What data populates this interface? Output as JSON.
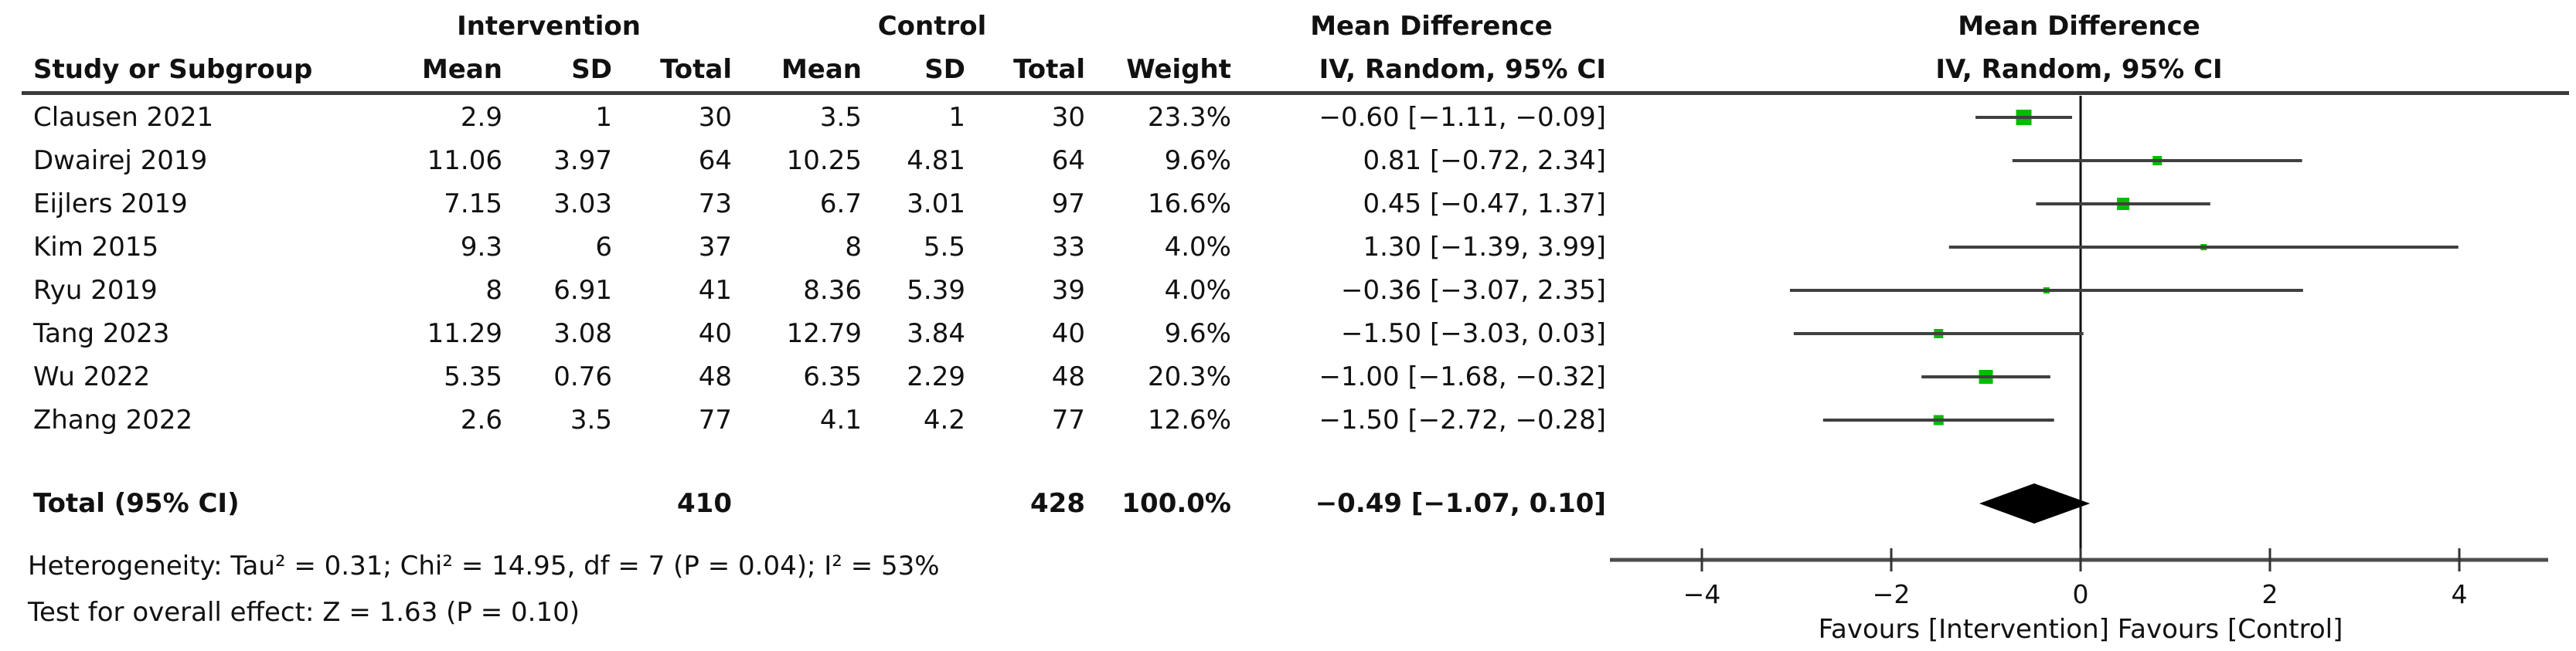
{
  "headers": {
    "study": "Study or Subgroup",
    "intervention": "Intervention",
    "control": "Control",
    "mean": "Mean",
    "sd": "SD",
    "total": "Total",
    "weight": "Weight",
    "md": "Mean Difference",
    "method": "IV, Random, 95% CI"
  },
  "stats": {
    "heterogeneity": "Heterogeneity: Tau² = 0.31; Chi² = 14.95, df = 7 (P = 0.04); I² = 53%",
    "overall_effect": "Test for overall effect: Z = 1.63 (P = 0.10)"
  },
  "axis": {
    "tick_labels": [
      "−4",
      "−2",
      "0",
      "2",
      "4"
    ],
    "tick_values": [
      -4,
      -2,
      0,
      2,
      4
    ],
    "favours": "Favours [Intervention] Favours [Control]"
  },
  "colors": {
    "marker_green": "#00bd00",
    "ci_line": "#404040",
    "diamond": "#000000",
    "axis": "#4d4d4d",
    "zero_line": "#111111"
  },
  "chart_data": {
    "type": "forest",
    "effect_measure": "Mean Difference",
    "model": "IV, Random, 95% CI",
    "x_ticks": [
      -4,
      -2,
      0,
      2,
      4
    ],
    "xlim": [
      -4.95,
      4.95
    ],
    "grid": false,
    "favours_label": "Favours [Intervention] Favours [Control]",
    "studies": [
      {
        "study": "Clausen 2021",
        "i_mean": "2.9",
        "i_sd": "1",
        "i_total": "30",
        "c_mean": "3.5",
        "c_sd": "1",
        "c_total": "30",
        "weight": "23.3%",
        "weight_pct": 23.3,
        "ci_label": "−0.60 [−1.11, −0.09]",
        "md": -0.6,
        "lo": -1.11,
        "hi": -0.09
      },
      {
        "study": "Dwairej 2019",
        "i_mean": "11.06",
        "i_sd": "3.97",
        "i_total": "64",
        "c_mean": "10.25",
        "c_sd": "4.81",
        "c_total": "64",
        "weight": "9.6%",
        "weight_pct": 9.6,
        "ci_label": "0.81 [−0.72, 2.34]",
        "md": 0.81,
        "lo": -0.72,
        "hi": 2.34
      },
      {
        "study": "Eijlers 2019",
        "i_mean": "7.15",
        "i_sd": "3.03",
        "i_total": "73",
        "c_mean": "6.7",
        "c_sd": "3.01",
        "c_total": "97",
        "weight": "16.6%",
        "weight_pct": 16.6,
        "ci_label": "0.45 [−0.47, 1.37]",
        "md": 0.45,
        "lo": -0.47,
        "hi": 1.37
      },
      {
        "study": "Kim 2015",
        "i_mean": "9.3",
        "i_sd": "6",
        "i_total": "37",
        "c_mean": "8",
        "c_sd": "5.5",
        "c_total": "33",
        "weight": "4.0%",
        "weight_pct": 4.0,
        "ci_label": "1.30 [−1.39, 3.99]",
        "md": 1.3,
        "lo": -1.39,
        "hi": 3.99
      },
      {
        "study": "Ryu 2019",
        "i_mean": "8",
        "i_sd": "6.91",
        "i_total": "41",
        "c_mean": "8.36",
        "c_sd": "5.39",
        "c_total": "39",
        "weight": "4.0%",
        "weight_pct": 4.0,
        "ci_label": "−0.36 [−3.07, 2.35]",
        "md": -0.36,
        "lo": -3.07,
        "hi": 2.35
      },
      {
        "study": "Tang 2023",
        "i_mean": "11.29",
        "i_sd": "3.08",
        "i_total": "40",
        "c_mean": "12.79",
        "c_sd": "3.84",
        "c_total": "40",
        "weight": "9.6%",
        "weight_pct": 9.6,
        "ci_label": "−1.50 [−3.03, 0.03]",
        "md": -1.5,
        "lo": -3.03,
        "hi": 0.03
      },
      {
        "study": "Wu 2022",
        "i_mean": "5.35",
        "i_sd": "0.76",
        "i_total": "48",
        "c_mean": "6.35",
        "c_sd": "2.29",
        "c_total": "48",
        "weight": "20.3%",
        "weight_pct": 20.3,
        "ci_label": "−1.00 [−1.68, −0.32]",
        "md": -1.0,
        "lo": -1.68,
        "hi": -0.32
      },
      {
        "study": "Zhang 2022",
        "i_mean": "2.6",
        "i_sd": "3.5",
        "i_total": "77",
        "c_mean": "4.1",
        "c_sd": "4.2",
        "c_total": "77",
        "weight": "12.6%",
        "weight_pct": 12.6,
        "ci_label": "−1.50 [−2.72, −0.28]",
        "md": -1.5,
        "lo": -2.72,
        "hi": -0.28
      }
    ],
    "total": {
      "label": "Total (95% CI)",
      "i_total": "410",
      "c_total": "428",
      "weight": "100.0%",
      "ci_label": "−0.49 [−1.07, 0.10]",
      "md": -0.49,
      "lo": -1.07,
      "hi": 0.1
    }
  }
}
